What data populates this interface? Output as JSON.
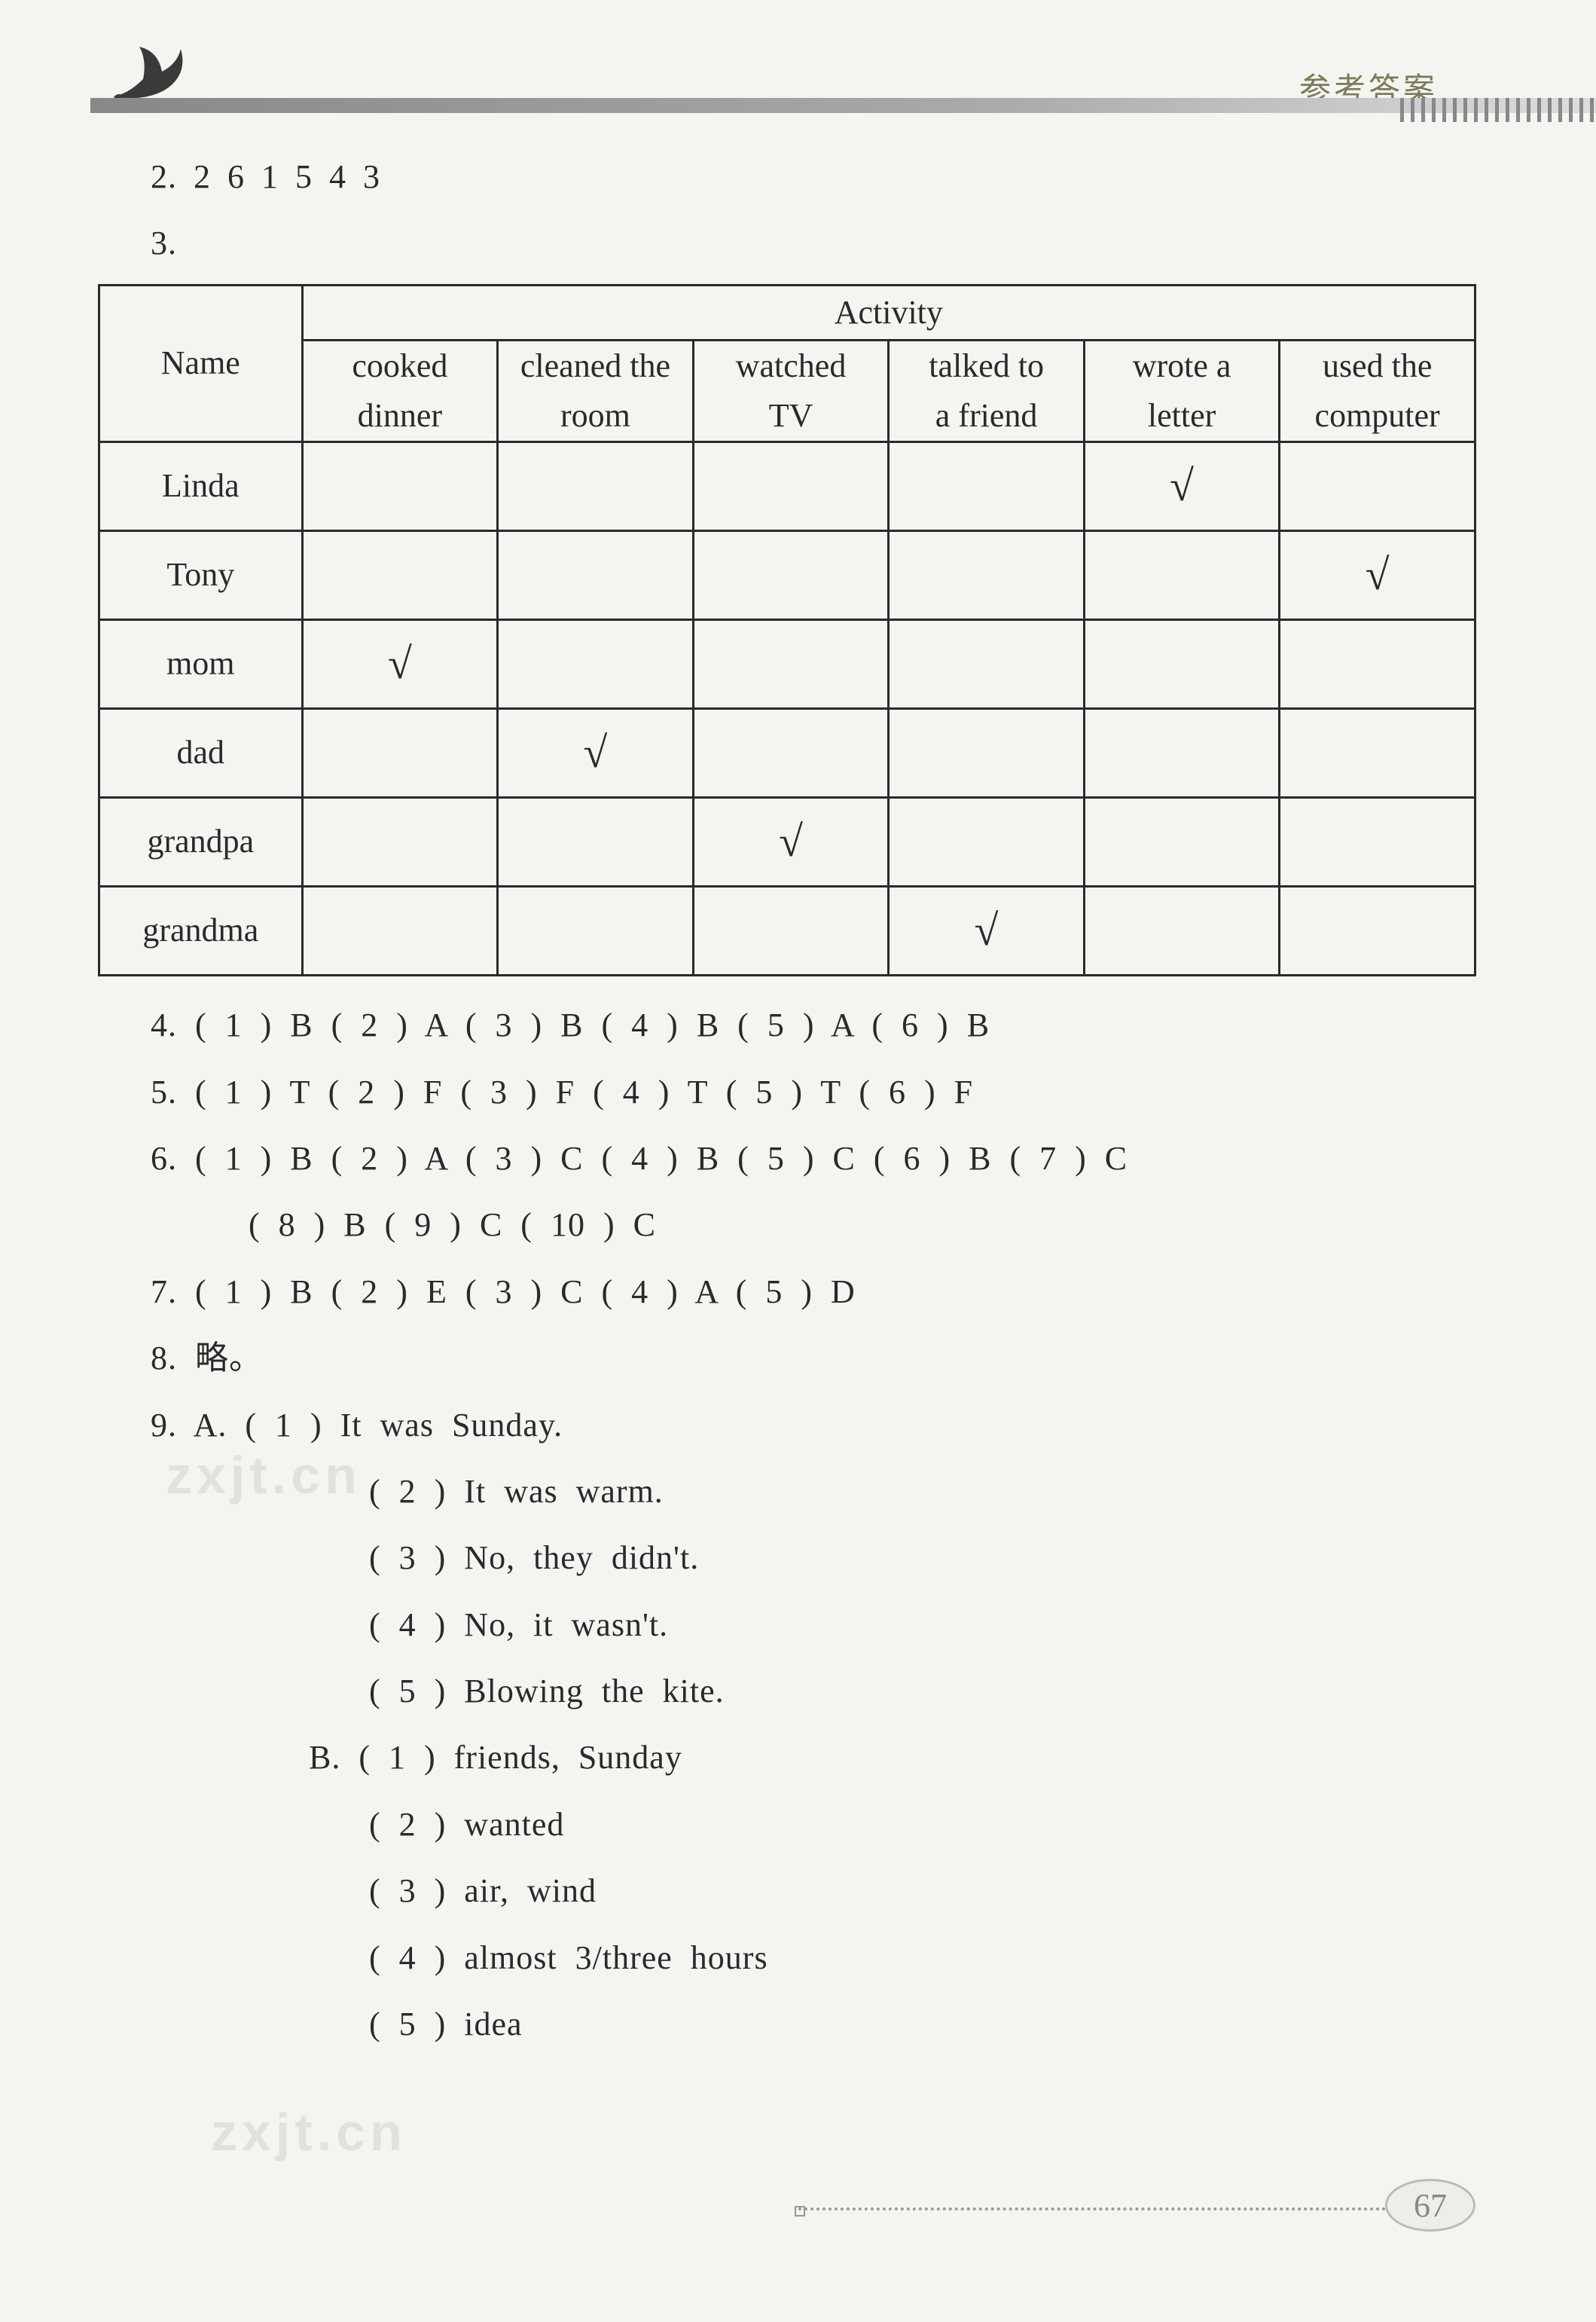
{
  "header": {
    "title": "参考答案",
    "page_number": "67"
  },
  "lines": {
    "l2": "2. 2  6  1  5  4  3",
    "l3": "3."
  },
  "table": {
    "name_label": "Name",
    "activity_label": "Activity",
    "columns": [
      "cooked dinner",
      "cleaned the room",
      "watched TV",
      "talked to a friend",
      "wrote a letter",
      "used the computer"
    ],
    "rows": [
      {
        "name": "Linda",
        "checks": [
          false,
          false,
          false,
          false,
          true,
          false
        ]
      },
      {
        "name": "Tony",
        "checks": [
          false,
          false,
          false,
          false,
          false,
          true
        ]
      },
      {
        "name": "mom",
        "checks": [
          true,
          false,
          false,
          false,
          false,
          false
        ]
      },
      {
        "name": "dad",
        "checks": [
          false,
          true,
          false,
          false,
          false,
          false
        ]
      },
      {
        "name": "grandpa",
        "checks": [
          false,
          false,
          true,
          false,
          false,
          false
        ]
      },
      {
        "name": "grandma",
        "checks": [
          false,
          false,
          false,
          true,
          false,
          false
        ]
      }
    ],
    "check_glyph": "√"
  },
  "answers": {
    "q4": "4.  ( 1 )  B   ( 2 )  A   ( 3 )  B   ( 4 )  B   ( 5 )  A   ( 6 )  B",
    "q5": "5.  ( 1 )  T   ( 2 )  F   ( 3 )  F   ( 4 )  T   ( 5 )  T   ( 6 )  F",
    "q6a": "6.  ( 1 )  B   ( 2 )  A   ( 3 )  C   ( 4 )  B   ( 5 )  C   ( 6 )  B   ( 7 )  C",
    "q6b": "( 8 )  B   ( 9 )  C   ( 10 )  C",
    "q7": "7.  ( 1 )  B   ( 2 )  E   ( 3 )  C   ( 4 )  A   ( 5 )  D",
    "q8": "8.  略。",
    "q9A1": "9.  A.  ( 1 )  It was Sunday.",
    "q9A2": "( 2 )  It was warm.",
    "q9A3": "( 3 )  No, they didn't.",
    "q9A4": "( 4 )  No, it wasn't.",
    "q9A5": "( 5 )  Blowing the kite.",
    "q9B1": "B.   ( 1 )  friends, Sunday",
    "q9B2": "( 2 )  wanted",
    "q9B3": "( 3 )  air, wind",
    "q9B4": "( 4 )  almost 3/three hours",
    "q9B5": "( 5 )  idea"
  },
  "watermarks": {
    "w1": "zxjt.cn",
    "w2": "zxjt.cn"
  }
}
